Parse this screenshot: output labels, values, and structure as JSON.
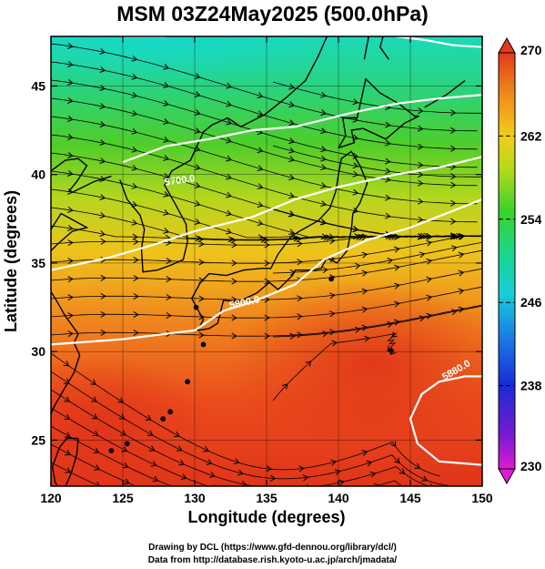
{
  "title": "MSM 03Z24May2025 (500.0hPa)",
  "x_axis": {
    "label": "Longitude (degrees)",
    "ticks": [
      "120",
      "125",
      "130",
      "135",
      "140",
      "145",
      "150"
    ]
  },
  "y_axis": {
    "label": "Latitude  (degrees)",
    "ticks": [
      "25",
      "30",
      "35",
      "40",
      "45"
    ]
  },
  "colorbar": {
    "ticks": [
      "270",
      "262",
      "254",
      "246",
      "238",
      "230"
    ],
    "min": 230,
    "max": 270
  },
  "contour_labels": [
    "5700.0",
    "5800.0",
    "5880.0"
  ],
  "credits": {
    "line1": "Drawing by DCL (https://www.gfd-dennou.org/library/dcl/)",
    "line2": "Data from http://database.rish.kyoto-u.ac.jp/arch/jmadata/"
  },
  "colors": {
    "warm": "#e53a1a",
    "mid": "#eebd1a",
    "cool": "#2dcf2d",
    "coldest": "#1ad6b4"
  }
}
